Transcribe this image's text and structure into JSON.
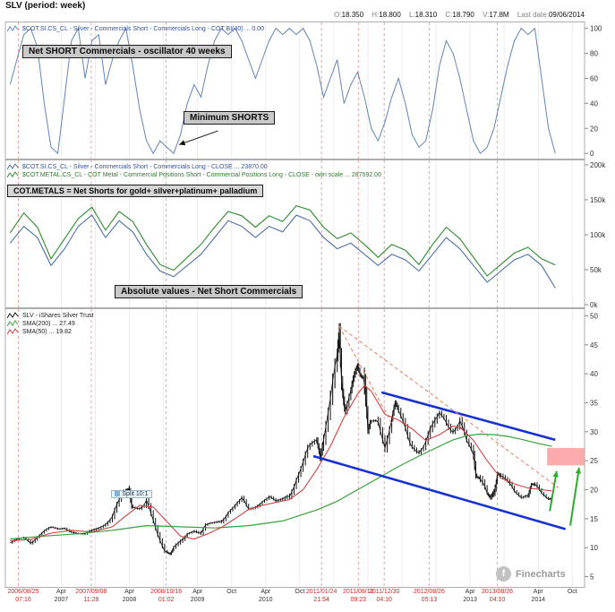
{
  "header": {
    "title": "SLV  (period: week)",
    "quote": {
      "o_label": "O:",
      "o": "18.350",
      "h_label": "H:",
      "h": "18.800",
      "l_label": "L:",
      "l": "18.310",
      "c_label": "C:",
      "c": "18.790",
      "v_label": "V:",
      "v": "17.8M",
      "last_label": "Last date:",
      "last": "09/06/2014"
    }
  },
  "colors": {
    "p1_line": "#6383b8",
    "p2_silver": "#4f6fa8",
    "p2_metal": "#2e8b2e",
    "price": "#111111",
    "sma200": "#3aa03a",
    "sma50": "#cc4444",
    "channel": "#1631d2",
    "signal_line": "#ef9f9f",
    "zone": "#ffabab",
    "arrow": "#2faa2f"
  },
  "panels": {
    "oscillator": {
      "legend": "$COT.SI.CS_CL - Silver - Commercials Short - Commercials Long - COT BI(40) ... 0.00",
      "annotation_main": "Net SHORT Commercials - oscillator 40 weeks",
      "annotation_min": "Minimum SHORTS"
    },
    "absolute": {
      "legend_silver": "$COT.SI.CS_CL - Silver - Commercials Short - Commercials Long - CLOSE ... 23870.00",
      "legend_metal": "$COT.METAL.CS_CL - COT Metal - Commercial Positions Short - Commercial Positions Long - CLOSE - own scale ... 287592.00",
      "annotation_cotmetals": "COT.METALS = Net Shorts for gold+ silver+platinum+ palladium",
      "annotation_absolute": "Absolute values - Net Short Commercials"
    },
    "price": {
      "legend_slv": "SLV - iShares Silver Trust",
      "legend_sma200": "SMA(200) ... 27.49",
      "legend_sma50": "SMA(50) ... 19.82",
      "split_label": "Split 10:1",
      "watermark": "Finecharts",
      "watermark_glyph": "f"
    }
  },
  "chart_data": [
    {
      "type": "line",
      "title": "Net SHORT Commercials - oscillator 40 weeks",
      "x_domain": [
        2006.43,
        2014.93
      ],
      "ylim": [
        -2,
        104
      ],
      "pad_top": 2,
      "pad_bottom": 4,
      "yticks": [
        {
          "v": 100,
          "label": "100"
        },
        {
          "v": 80,
          "label": "80"
        },
        {
          "v": 60,
          "label": "60"
        },
        {
          "v": 40,
          "label": "40"
        },
        {
          "v": 20,
          "label": "20"
        },
        {
          "v": 0,
          "label": "0"
        }
      ],
      "signal_dates": [
        2006.62,
        2007.69,
        2008.79,
        2011.07,
        2011.61,
        2011.99,
        2012.65,
        2013.65
      ],
      "grid_dates": [
        2007.25,
        2007.75,
        2008.25,
        2008.75,
        2009.25,
        2009.75,
        2010.25,
        2010.75,
        2011.25,
        2011.75,
        2012.25,
        2012.75,
        2013.25,
        2013.75,
        2014.25,
        2014.75
      ],
      "x_labels": [
        {
          "t": 2006.62,
          "line1": "2006/08/25",
          "line2": "07:16",
          "type": "signal"
        },
        {
          "t": 2007.25,
          "line1": "Apr",
          "line2": "2007",
          "type": "normal"
        },
        {
          "t": 2007.69,
          "line1": "2007/09/08",
          "line2": "11:28",
          "type": "signal"
        },
        {
          "t": 2008.25,
          "line1": "Apr",
          "line2": "2008",
          "type": "normal"
        },
        {
          "t": 2008.79,
          "line1": "2008/10/16",
          "line2": "01:02",
          "type": "signal"
        },
        {
          "t": 2009.25,
          "line1": "Apr",
          "line2": "2009",
          "type": "normal"
        },
        {
          "t": 2009.75,
          "line1": "Oct",
          "line2": "",
          "type": "normal"
        },
        {
          "t": 2010.25,
          "line1": "Apr",
          "line2": "2010",
          "type": "normal"
        },
        {
          "t": 2010.75,
          "line1": "Oct",
          "line2": "",
          "type": "normal"
        },
        {
          "t": 2011.07,
          "line1": "2011/01/24",
          "line2": "21:54",
          "type": "signal"
        },
        {
          "t": 2011.61,
          "line1": "2011/08/12",
          "line2": "09:23",
          "type": "signal"
        },
        {
          "t": 2011.99,
          "line1": "2011/12/30",
          "line2": "04:10",
          "type": "signal"
        },
        {
          "t": 2012.65,
          "line1": "2012/08/26",
          "line2": "05:13",
          "type": "signal"
        },
        {
          "t": 2013.25,
          "line1": "Apr",
          "line2": "2013",
          "type": "normal"
        },
        {
          "t": 2013.65,
          "line1": "2013/08/26",
          "line2": "04:10",
          "type": "signal"
        },
        {
          "t": 2014.25,
          "line1": "Apr",
          "line2": "2014",
          "type": "normal"
        },
        {
          "t": 2014.75,
          "line1": "Oct",
          "line2": "",
          "type": "normal"
        }
      ],
      "annotation_arrow": {
        "from": [
          2009.55,
          18
        ],
        "to": [
          2008.98,
          7
        ]
      },
      "series": [
        {
          "name": "COT BI(40) oscillator",
          "color": "#6383b8",
          "width": 1,
          "x_start": 2006.5,
          "x_step": 0.1,
          "values": [
            55,
            75,
            95,
            100,
            85,
            40,
            5,
            0,
            45,
            90,
            100,
            60,
            90,
            95,
            55,
            75,
            90,
            100,
            70,
            35,
            10,
            0,
            10,
            5,
            0,
            15,
            40,
            55,
            45,
            70,
            90,
            100,
            95,
            100,
            90,
            75,
            60,
            75,
            90,
            100,
            95,
            100,
            95,
            100,
            90,
            70,
            45,
            60,
            75,
            40,
            55,
            65,
            45,
            20,
            10,
            25,
            45,
            60,
            40,
            15,
            5,
            10,
            35,
            70,
            90,
            80,
            60,
            35,
            10,
            0,
            5,
            20,
            45,
            70,
            90,
            100,
            95,
            100,
            60,
            20,
            0
          ]
        }
      ]
    },
    {
      "type": "line",
      "title": "Absolute values - Net Short Commercials",
      "x_domain": [
        2006.43,
        2014.93
      ],
      "ylim": [
        0,
        205
      ],
      "pad_top": 2,
      "pad_bottom": 4,
      "yticks": [
        {
          "v": 200,
          "label": "200k"
        },
        {
          "v": 150,
          "label": "150k"
        },
        {
          "v": 100,
          "label": "100k"
        },
        {
          "v": 50,
          "label": "50k"
        },
        {
          "v": 0,
          "label": "0k"
        }
      ],
      "series": [
        {
          "name": "Silver net short commercials",
          "color": "#4f6fa8",
          "width": 1.1,
          "x_start": 2006.5,
          "x_step": 0.2,
          "values": [
            88,
            112,
            96,
            56,
            80,
            112,
            128,
            96,
            120,
            104,
            72,
            48,
            40,
            56,
            72,
            96,
            120,
            112,
            96,
            112,
            104,
            128,
            120,
            96,
            80,
            88,
            72,
            56,
            72,
            64,
            48,
            72,
            96,
            80,
            56,
            32,
            48,
            64,
            72,
            56,
            23.87
          ]
        },
        {
          "name": "COT metal net short",
          "color": "#2e8b2e",
          "width": 1.1,
          "own_ylim": [
            150,
            650
          ],
          "x_start": 2006.5,
          "x_step": 0.2,
          "values": [
            400,
            470,
            420,
            310,
            380,
            450,
            490,
            410,
            475,
            440,
            360,
            290,
            270,
            315,
            360,
            420,
            475,
            460,
            420,
            460,
            440,
            495,
            480,
            420,
            380,
            400,
            360,
            315,
            360,
            340,
            290,
            360,
            420,
            380,
            315,
            250,
            290,
            330,
            350,
            310,
            288
          ]
        }
      ]
    },
    {
      "type": "candlestick",
      "title": "SLV - iShares Silver Trust",
      "x_domain": [
        2006.43,
        2014.93
      ],
      "ylim": [
        4,
        51
      ],
      "pad_top": 2,
      "pad_bottom": 6,
      "yticks": [
        {
          "v": 50,
          "label": "50"
        },
        {
          "v": 45,
          "label": "45"
        },
        {
          "v": 40,
          "label": "40"
        },
        {
          "v": 35,
          "label": "35"
        },
        {
          "v": 30,
          "label": "30"
        },
        {
          "v": 25,
          "label": "25"
        },
        {
          "v": 20,
          "label": "20"
        },
        {
          "v": 15,
          "label": "15"
        },
        {
          "v": 10,
          "label": "10"
        },
        {
          "v": 5,
          "label": "5"
        }
      ],
      "series": [
        {
          "name": "SLV weekly close",
          "role": "price",
          "color": "#111111",
          "x": [
            2006.5,
            2006.6,
            2006.7,
            2006.8,
            2006.9,
            2007.0,
            2007.1,
            2007.2,
            2007.3,
            2007.4,
            2007.5,
            2007.6,
            2007.7,
            2007.8,
            2007.9,
            2008.0,
            2008.1,
            2008.2,
            2008.25,
            2008.3,
            2008.4,
            2008.5,
            2008.6,
            2008.7,
            2008.8,
            2008.85,
            2008.9,
            2009.0,
            2009.1,
            2009.2,
            2009.3,
            2009.4,
            2009.5,
            2009.6,
            2009.7,
            2009.8,
            2009.9,
            2010.0,
            2010.1,
            2010.2,
            2010.3,
            2010.4,
            2010.5,
            2010.6,
            2010.7,
            2010.8,
            2010.9,
            2011.0,
            2011.05,
            2011.1,
            2011.2,
            2011.3,
            2011.33,
            2011.38,
            2011.42,
            2011.5,
            2011.55,
            2011.6,
            2011.65,
            2011.7,
            2011.75,
            2011.8,
            2011.9,
            2012.0,
            2012.1,
            2012.15,
            2012.2,
            2012.3,
            2012.4,
            2012.5,
            2012.6,
            2012.7,
            2012.8,
            2012.9,
            2013.0,
            2013.1,
            2013.2,
            2013.3,
            2013.35,
            2013.4,
            2013.5,
            2013.55,
            2013.6,
            2013.65,
            2013.7,
            2013.8,
            2013.9,
            2014.0,
            2014.1,
            2014.15,
            2014.2,
            2014.3,
            2014.4,
            2014.45
          ],
          "values": [
            10.8,
            11.3,
            11.6,
            11.0,
            12.1,
            12.9,
            13.4,
            13.1,
            13.5,
            12.9,
            12.4,
            12.1,
            12.9,
            13.6,
            14.3,
            15.2,
            17.6,
            19.8,
            20.5,
            17.2,
            16.6,
            17.3,
            14.4,
            11.8,
            9.4,
            8.8,
            9.6,
            11.0,
            12.6,
            13.1,
            12.3,
            13.9,
            14.3,
            14.9,
            16.3,
            17.1,
            18.1,
            16.6,
            17.3,
            18.1,
            18.6,
            17.7,
            18.4,
            19.6,
            22.1,
            24.2,
            27.2,
            28.6,
            26.5,
            29.5,
            34.5,
            41.5,
            47.3,
            38.0,
            34.0,
            36.5,
            39.0,
            41.5,
            40.0,
            39.5,
            29.5,
            31.5,
            32.0,
            28.5,
            32.5,
            34.5,
            33.0,
            31.0,
            28.0,
            26.5,
            27.5,
            30.5,
            33.5,
            32.5,
            30.0,
            31.0,
            28.0,
            26.5,
            22.5,
            22.0,
            19.0,
            18.2,
            20.0,
            23.2,
            22.5,
            21.0,
            19.5,
            18.8,
            19.5,
            21.0,
            20.5,
            19.2,
            18.5,
            18.8
          ]
        },
        {
          "name": "SMA(200)",
          "color": "#3aa03a",
          "width": 1.2,
          "x": [
            2006.5,
            2007.0,
            2007.5,
            2008.0,
            2008.5,
            2009.0,
            2009.5,
            2010.0,
            2010.5,
            2011.0,
            2011.3,
            2011.6,
            2011.9,
            2012.2,
            2012.5,
            2012.8,
            2013.0,
            2013.2,
            2013.4,
            2013.6,
            2013.8,
            2014.0,
            2014.2,
            2014.45
          ],
          "values": [
            11.5,
            12.0,
            12.4,
            13.0,
            13.8,
            13.6,
            13.4,
            13.8,
            14.6,
            16.5,
            18.0,
            20.0,
            22.0,
            24.0,
            25.8,
            27.5,
            28.6,
            29.3,
            29.6,
            29.5,
            29.2,
            28.7,
            28.1,
            27.49
          ]
        },
        {
          "name": "SMA(50)",
          "color": "#cc4444",
          "width": 1.1,
          "x": [
            2006.5,
            2006.8,
            2007.1,
            2007.4,
            2007.7,
            2008.0,
            2008.2,
            2008.4,
            2008.6,
            2008.8,
            2009.0,
            2009.2,
            2009.4,
            2009.6,
            2009.8,
            2010.0,
            2010.2,
            2010.4,
            2010.6,
            2010.8,
            2011.0,
            2011.2,
            2011.4,
            2011.6,
            2011.7,
            2011.8,
            2011.9,
            2012.0,
            2012.2,
            2012.4,
            2012.6,
            2012.8,
            2013.0,
            2013.1,
            2013.3,
            2013.5,
            2013.7,
            2013.9,
            2014.1,
            2014.3,
            2014.45
          ],
          "values": [
            11.2,
            11.4,
            12.5,
            13.0,
            12.7,
            13.6,
            15.5,
            17.3,
            17.0,
            14.5,
            12.0,
            11.5,
            12.4,
            13.5,
            15.0,
            16.6,
            17.3,
            17.8,
            18.3,
            20.0,
            23.5,
            27.5,
            32.5,
            36.5,
            38.0,
            37.0,
            35.0,
            33.0,
            32.0,
            30.5,
            28.5,
            29.5,
            31.0,
            30.8,
            28.5,
            25.0,
            22.0,
            21.0,
            20.3,
            20.0,
            19.8
          ]
        }
      ],
      "trendlines": [
        {
          "name": "blue-channel-upper",
          "color": "#1631d2",
          "width": 2.6,
          "dash": null,
          "from": [
            2011.95,
            36.8
          ],
          "to": [
            2014.5,
            28.6
          ]
        },
        {
          "name": "blue-channel-lower",
          "color": "#1631d2",
          "width": 2.6,
          "dash": null,
          "from": [
            2010.95,
            25.8
          ],
          "to": [
            2014.65,
            13.2
          ]
        },
        {
          "name": "red-resistance-long",
          "color": "#e08060",
          "width": 1,
          "dash": "4,3",
          "from": [
            2011.33,
            48.2
          ],
          "to": [
            2014.55,
            20.3
          ]
        },
        {
          "name": "red-resistance-steep",
          "color": "#e08060",
          "width": 1,
          "dash": "4,3",
          "from": [
            2011.33,
            48.2
          ],
          "to": [
            2012.12,
            31.0
          ]
        }
      ],
      "target_zone": {
        "t": [
          2014.38,
          2014.97
        ],
        "price": [
          24.2,
          27.2
        ],
        "color": "#ffabab"
      },
      "arrows": [
        {
          "from": [
            2014.42,
            16.3
          ],
          "to": [
            2014.52,
            23.2
          ]
        },
        {
          "from": [
            2014.72,
            13.8
          ],
          "to": [
            2014.85,
            23.8
          ]
        }
      ],
      "split_marker": {
        "t": 2008.3,
        "price": 19.0
      }
    }
  ]
}
